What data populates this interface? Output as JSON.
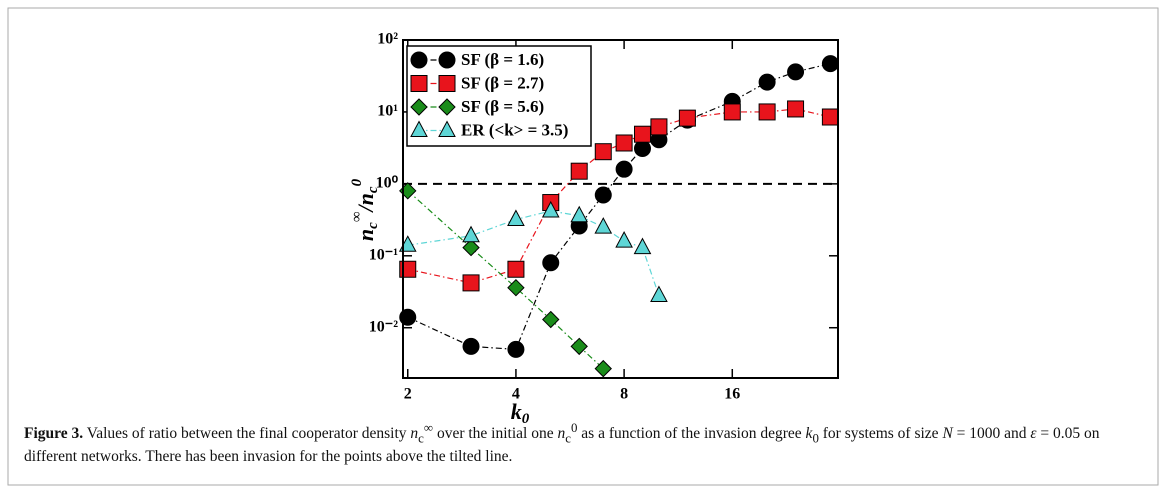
{
  "chart_data": {
    "type": "line",
    "xlabel": [
      "k",
      "0"
    ],
    "ylabel": [
      "n",
      "c",
      "∞",
      "/",
      "n",
      "c",
      "0"
    ],
    "xscale": "log",
    "yscale": "log",
    "xlim": [
      1.94,
      31.5
    ],
    "ylim": [
      0.002,
      100
    ],
    "xticks": [
      2,
      4,
      8,
      16
    ],
    "yticks": [
      {
        "value": 0.01,
        "label": "10⁻²"
      },
      {
        "value": 0.1,
        "label": "10⁻¹"
      },
      {
        "value": 1,
        "label": "10⁰"
      },
      {
        "value": 10,
        "label": "10¹"
      },
      {
        "value": 100,
        "label": "10²"
      }
    ],
    "reference_line": 1,
    "legend": "upper left",
    "series": [
      {
        "name": "SF (β = 1.6)",
        "color": "#000000",
        "marker": "circle",
        "x": [
          2,
          3,
          4,
          5,
          6,
          7,
          8,
          9,
          10,
          12,
          16,
          20,
          24,
          30
        ],
        "values": [
          0.014,
          0.0055,
          0.005,
          0.08,
          0.26,
          0.7,
          1.6,
          3.1,
          4.1,
          7.7,
          14,
          26,
          36,
          47
        ]
      },
      {
        "name": "SF (β = 2.7)",
        "color": "#e8141c",
        "marker": "square",
        "x": [
          2,
          3,
          4,
          5,
          6,
          7,
          8,
          9,
          10,
          12,
          16,
          20,
          24,
          30
        ],
        "values": [
          0.065,
          0.042,
          0.065,
          0.55,
          1.5,
          2.8,
          3.7,
          4.9,
          6.2,
          8.2,
          10,
          10,
          11,
          8.5
        ]
      },
      {
        "name": "SF (β = 5.6)",
        "color": "#1a8c1a",
        "marker": "diamond",
        "x": [
          2,
          3,
          4,
          5,
          6,
          7
        ],
        "values": [
          0.8,
          0.13,
          0.036,
          0.013,
          0.0055,
          0.0027
        ]
      },
      {
        "name": "ER (<k> = 3.5)",
        "color": "#5ed6d6",
        "marker": "triangle",
        "x": [
          2,
          3,
          4,
          5,
          6,
          7,
          8,
          9,
          10
        ],
        "values": [
          0.14,
          0.19,
          0.32,
          0.42,
          0.36,
          0.25,
          0.16,
          0.13,
          0.028
        ]
      }
    ]
  },
  "caption": {
    "label": "Figure 3.",
    "parts": [
      " Values of ratio between the final cooperator density ",
      "n",
      "c",
      "∞",
      " over the initial one ",
      "n",
      "c",
      "0",
      " as a function of the invasion degree ",
      "k",
      "0",
      " for systems of size ",
      "N",
      " = 1000 and ",
      "ε",
      " = 0.05 on different networks. There has been invasion for the points above the tilted line."
    ]
  }
}
